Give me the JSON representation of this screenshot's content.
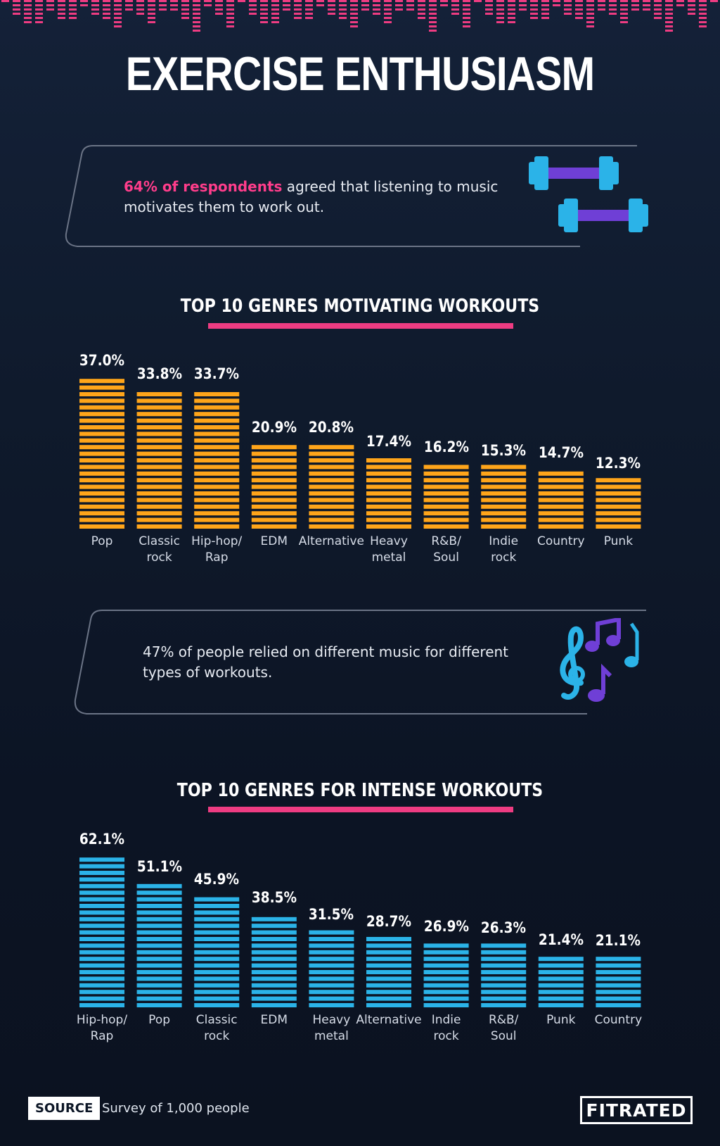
{
  "title": "EXERCISE ENTHUSIASM",
  "callouts": {
    "first": {
      "highlight": "64% of respondents",
      "text": " agreed that listening to music motivates them to work out."
    },
    "second": {
      "text": "47% of people relied on different music for different types of workouts."
    }
  },
  "icons": {
    "first": "dumbbells-icon",
    "second": "music-notes-icon"
  },
  "footer": {
    "source_label": "SOURCE",
    "source_text": "Survey of 1,000 people",
    "logo": "FITRATED"
  },
  "colors": {
    "pink": "#ee3c82",
    "orange": "#ffa51a",
    "blue": "#2bb3e8",
    "purple": "#6f3fd6"
  },
  "chart_data": [
    {
      "type": "bar",
      "title": "TOP 10 GENRES MOTIVATING WORKOUTS",
      "categories": [
        "Pop",
        "Classic rock",
        "Hip-hop/ Rap",
        "EDM",
        "Alternative",
        "Heavy metal",
        "R&B/ Soul",
        "Indie rock",
        "Country",
        "Punk"
      ],
      "values": [
        37.0,
        33.8,
        33.7,
        20.9,
        20.8,
        17.4,
        16.2,
        15.3,
        14.7,
        12.3
      ],
      "value_labels": [
        "37.0%",
        "33.8%",
        "33.7%",
        "20.9%",
        "20.8%",
        "17.4%",
        "16.2%",
        "15.3%",
        "14.7%",
        "12.3%"
      ],
      "color": "#ffa51a"
    },
    {
      "type": "bar",
      "title": "TOP 10 GENRES FOR INTENSE WORKOUTS",
      "categories": [
        "Hip-hop/ Rap",
        "Pop",
        "Classic rock",
        "EDM",
        "Heavy metal",
        "Alternative",
        "Indie rock",
        "R&B/ Soul",
        "Punk",
        "Country"
      ],
      "values": [
        62.1,
        51.1,
        45.9,
        38.5,
        31.5,
        28.7,
        26.9,
        26.3,
        21.4,
        21.1
      ],
      "value_labels": [
        "62.1%",
        "51.1%",
        "45.9%",
        "38.5%",
        "31.5%",
        "28.7%",
        "26.9%",
        "26.3%",
        "21.4%",
        "21.1%"
      ],
      "color": "#2bb3e8"
    }
  ]
}
